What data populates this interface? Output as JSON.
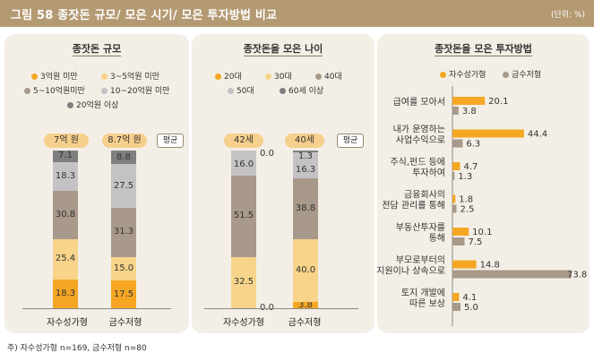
{
  "header": {
    "title": "그림 58  종잣돈 규모/ 모은 시기/ 모은 투자방법 비교",
    "unit": "(단위: %)"
  },
  "colors": {
    "header_bg": "#b49a72",
    "panel_bg": "#f3efe6",
    "s1": "#f5a623",
    "s2": "#f7d48a",
    "s3": "#a8998a",
    "s4": "#c4c2c5",
    "s5": "#7f7f7f",
    "pill": "#f7cf8c"
  },
  "chart_data": [
    {
      "type": "bar",
      "stacked": true,
      "title": "종잣돈 규모",
      "categories": [
        "자수성가형",
        "금수저형"
      ],
      "series": [
        {
          "name": "3억원 미만",
          "values": [
            18.3,
            17.5
          ]
        },
        {
          "name": "3~5억원 미만",
          "values": [
            25.4,
            15.0
          ]
        },
        {
          "name": "5~10억원미만",
          "values": [
            30.8,
            31.3
          ]
        },
        {
          "name": "10~20억원 미만",
          "values": [
            18.3,
            27.5
          ]
        },
        {
          "name": "20억원 이상",
          "values": [
            7.1,
            8.8
          ]
        }
      ],
      "averages": [
        "7억 원",
        "8.7억 원"
      ],
      "avg_label": "평균"
    },
    {
      "type": "bar",
      "stacked": true,
      "title": "종잣돈을 모은 나이",
      "categories": [
        "자수성가형",
        "금수저형"
      ],
      "series": [
        {
          "name": "20대",
          "values": [
            0.0,
            3.8
          ]
        },
        {
          "name": "30대",
          "values": [
            32.5,
            40.0
          ]
        },
        {
          "name": "40대",
          "values": [
            51.5,
            38.8
          ]
        },
        {
          "name": "50대",
          "values": [
            16.0,
            16.3
          ]
        },
        {
          "name": "60세 이상",
          "values": [
            0.0,
            1.3
          ]
        }
      ],
      "averages": [
        "42세",
        "40세"
      ],
      "avg_label": "평균"
    },
    {
      "type": "bar",
      "orientation": "horizontal",
      "title": "종잣돈을 모은 투자방법",
      "categories": [
        "급여를 모아서",
        "내가 운영하는 사업수익으로",
        "주식,펀드 등에 투자하여",
        "금융회사의 전담 관리를 통해",
        "부동산투자를 통해",
        "부모로부터의 지원이나 상속으로",
        "토지 개발에 따른 보상"
      ],
      "category_lines": [
        [
          "급여를 모아서"
        ],
        [
          "내가 운영하는",
          "사업수익으로"
        ],
        [
          "주식,펀드 등에",
          "투자하여"
        ],
        [
          "금융회사의",
          "전담 관리를 통해"
        ],
        [
          "부동산투자를",
          "통해"
        ],
        [
          "부모로부터의",
          "지원이나 상속으로"
        ],
        [
          "토지 개발에",
          "따른 보상"
        ]
      ],
      "series": [
        {
          "name": "자수성가형",
          "values": [
            20.1,
            44.4,
            4.7,
            1.8,
            10.1,
            14.8,
            4.1
          ]
        },
        {
          "name": "금수저형",
          "values": [
            3.8,
            6.3,
            1.3,
            2.5,
            7.5,
            73.8,
            5.0
          ]
        }
      ]
    }
  ],
  "note": "주) 자수성가형 n=169, 금수저형 n=80"
}
